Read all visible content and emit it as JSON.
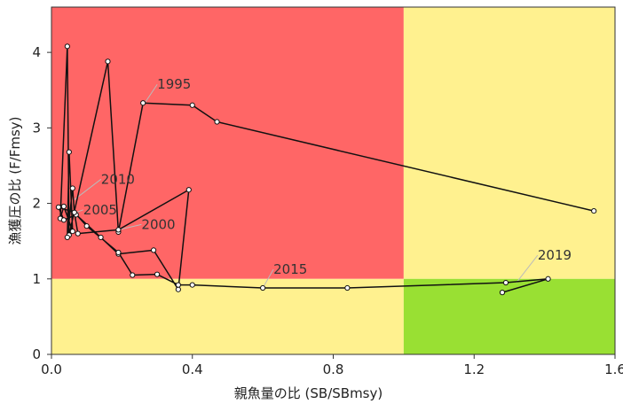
{
  "chart_data": {
    "type": "line",
    "xlabel": "親魚量の比 (SB/SBmsy)",
    "ylabel": "漁獲圧の比 (F/Fmsy)",
    "xlim": [
      0,
      1.6
    ],
    "ylim": [
      0,
      4.6
    ],
    "x_ticks": [
      "0.0",
      "0.4",
      "0.8",
      "1.2",
      "1.6"
    ],
    "y_ticks": [
      "0",
      "1",
      "2",
      "3",
      "4"
    ],
    "x_tick_values": [
      0,
      0.4,
      0.8,
      1.2,
      1.6
    ],
    "y_tick_values": [
      0,
      1,
      2,
      3,
      4
    ],
    "grid": false,
    "zones": [
      {
        "name": "red",
        "x": [
          0,
          1.0
        ],
        "y": [
          1,
          4.6
        ],
        "color": "#FF6666"
      },
      {
        "name": "yellow-top",
        "x": [
          1.0,
          1.6
        ],
        "y": [
          1,
          4.6
        ],
        "color": "#FFF18F"
      },
      {
        "name": "yellow-bottom",
        "x": [
          0,
          1.0
        ],
        "y": [
          0,
          1
        ],
        "color": "#FFF18F"
      },
      {
        "name": "green",
        "x": [
          1.0,
          1.6
        ],
        "y": [
          0,
          1
        ],
        "color": "#99E033"
      }
    ],
    "series": [
      {
        "values": [
          [
            1.54,
            1.9
          ],
          [
            0.47,
            3.08
          ],
          [
            0.4,
            3.3
          ],
          [
            0.26,
            3.33
          ],
          [
            0.19,
            1.62
          ],
          [
            0.16,
            3.88
          ],
          [
            0.05,
            1.58
          ],
          [
            0.045,
            4.08
          ],
          [
            0.025,
            1.8
          ],
          [
            0.035,
            1.96
          ],
          [
            0.06,
            1.63
          ],
          [
            0.05,
            2.68
          ],
          [
            0.045,
            1.55
          ],
          [
            0.06,
            2.2
          ],
          [
            0.065,
            1.88
          ],
          [
            0.075,
            1.6
          ],
          [
            0.19,
            1.65
          ],
          [
            0.39,
            2.18
          ],
          [
            0.36,
            0.86
          ],
          [
            0.29,
            1.38
          ],
          [
            0.19,
            1.33
          ],
          [
            0.14,
            1.55
          ],
          [
            0.07,
            1.85
          ],
          [
            0.035,
            1.78
          ],
          [
            0.02,
            1.95
          ],
          [
            0.065,
            1.88
          ],
          [
            0.1,
            1.7
          ],
          [
            0.19,
            1.35
          ],
          [
            0.23,
            1.05
          ],
          [
            0.3,
            1.06
          ],
          [
            0.36,
            0.92
          ],
          [
            0.4,
            0.92
          ],
          [
            0.6,
            0.88
          ],
          [
            0.84,
            0.88
          ],
          [
            1.29,
            0.95
          ],
          [
            1.41,
            1.0
          ],
          [
            1.28,
            0.82
          ]
        ]
      }
    ],
    "annotations": [
      {
        "text": "1995",
        "x": 0.265,
        "y": 3.33
      },
      {
        "text": "2000",
        "x": 0.19,
        "y": 1.65
      },
      {
        "text": "2005",
        "x": 0.07,
        "y": 1.88
      },
      {
        "text": "2010",
        "x": 0.065,
        "y": 2.05
      },
      {
        "text": "2015",
        "x": 0.6,
        "y": 0.88
      },
      {
        "text": "2019",
        "x": 1.32,
        "y": 0.95
      }
    ]
  }
}
